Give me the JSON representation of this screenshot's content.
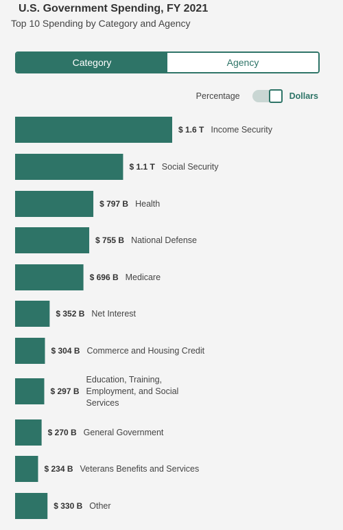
{
  "header": {
    "title": "U.S. Government Spending, FY 2021",
    "subtitle": "Top 10 Spending by Category and Agency"
  },
  "tabs": [
    {
      "label": "Category",
      "active": true
    },
    {
      "label": "Agency",
      "active": false
    }
  ],
  "toggle": {
    "off_label": "Percentage",
    "on_label": "Dollars",
    "selected": "Dollars"
  },
  "colors": {
    "accent": "#2e7467"
  },
  "chart_data": {
    "type": "bar",
    "orientation": "horizontal",
    "unit": "USD",
    "categories": [
      "Income Security",
      "Social Security",
      "Health",
      "National Defense",
      "Medicare",
      "Net Interest",
      "Commerce and Housing Credit",
      "Education, Training, Employment, and Social Services",
      "General Government",
      "Veterans Benefits and Services",
      "Other"
    ],
    "category_lines": [
      [
        "Income Security"
      ],
      [
        "Social Security"
      ],
      [
        "Health"
      ],
      [
        "National Defense"
      ],
      [
        "Medicare"
      ],
      [
        "Net Interest"
      ],
      [
        "Commerce and Housing Credit"
      ],
      [
        "Education, Training,",
        "Employment, and Social",
        "Services"
      ],
      [
        "General Government"
      ],
      [
        "Veterans Benefits and Services"
      ],
      [
        "Other"
      ]
    ],
    "values_billions": [
      1600,
      1100,
      797,
      755,
      696,
      352,
      304,
      297,
      270,
      234,
      330
    ],
    "value_labels": [
      "$ 1.6 T",
      "$ 1.1 T",
      "$ 797 B",
      "$ 755 B",
      "$ 696 B",
      "$ 352 B",
      "$ 304 B",
      "$ 297 B",
      "$ 270 B",
      "$ 234 B",
      "$ 330 B"
    ],
    "xlim": [
      0,
      1600
    ],
    "grid": false,
    "legend": false
  }
}
